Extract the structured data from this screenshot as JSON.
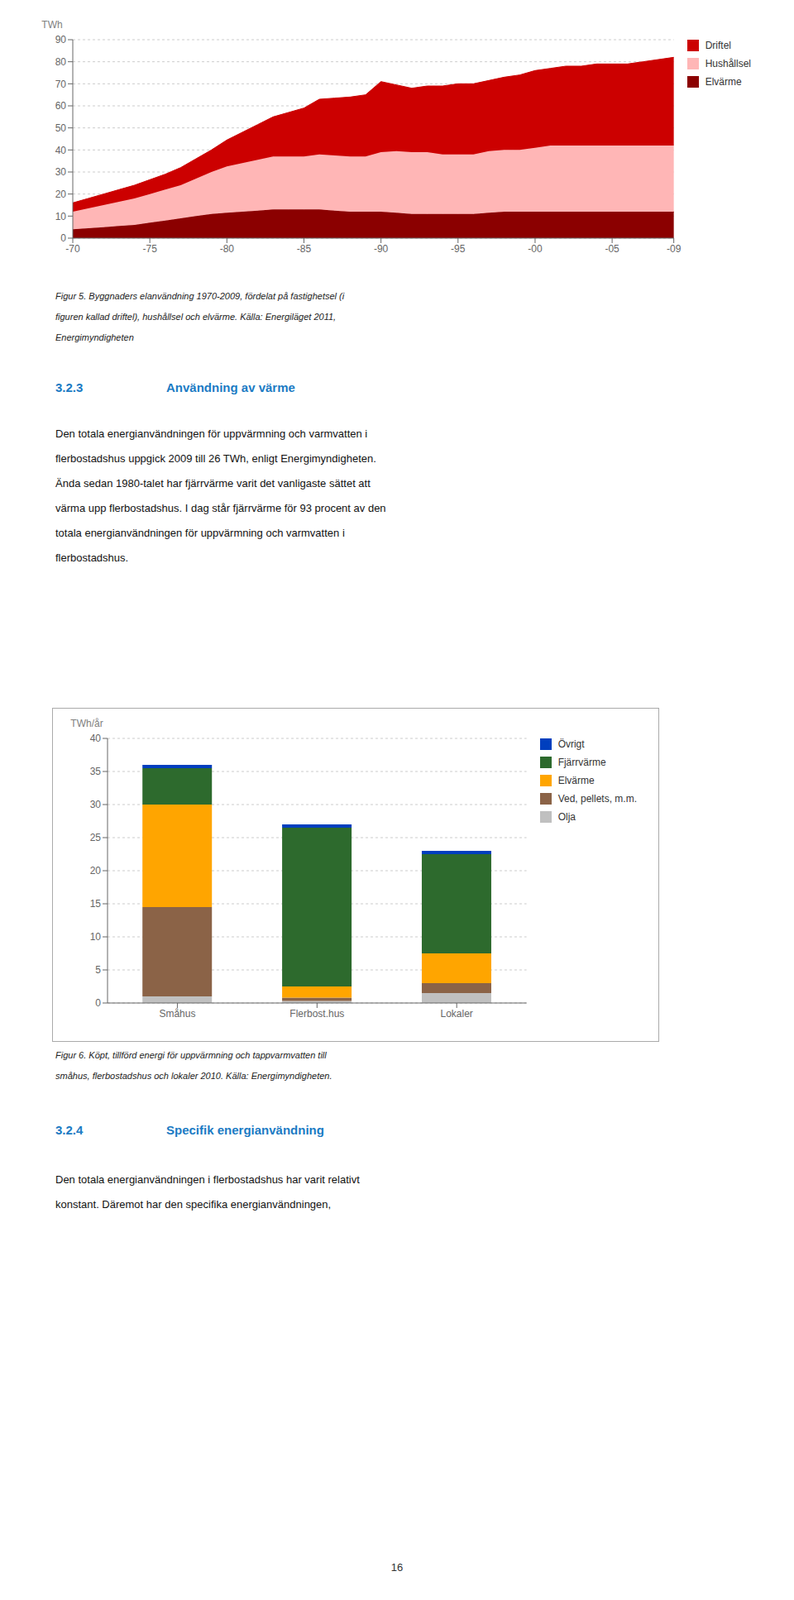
{
  "chart_data": [
    {
      "type": "area",
      "stacked": true,
      "grid": true,
      "legend": "right",
      "categories": [
        "-70",
        null,
        null,
        null,
        null,
        "-75",
        null,
        null,
        null,
        null,
        "-80",
        null,
        null,
        null,
        null,
        "-85",
        null,
        null,
        null,
        null,
        "-90",
        null,
        null,
        null,
        null,
        "-95",
        null,
        null,
        null,
        null,
        "-00",
        null,
        null,
        null,
        null,
        "-05",
        null,
        null,
        null,
        "-09"
      ],
      "series": [
        {
          "name": "Elvärme",
          "color": "#8B0000",
          "values": [
            4,
            4.5,
            5,
            5.5,
            6,
            7,
            8,
            9,
            10,
            11,
            11.5,
            12,
            12.5,
            13,
            13,
            13,
            13,
            12.5,
            12,
            12,
            12,
            11.5,
            11,
            11,
            11,
            11,
            11,
            11.5,
            12,
            12,
            12,
            12,
            12,
            12,
            12,
            12,
            12,
            12,
            12,
            12
          ]
        },
        {
          "name": "Hushållsel",
          "color": "#FFB6B6",
          "values": [
            8,
            9,
            10,
            11,
            12,
            13,
            14,
            15,
            17,
            19,
            21,
            22,
            23,
            24,
            24,
            24,
            25,
            25,
            25,
            25,
            27,
            28,
            28,
            28,
            27,
            27,
            27,
            28,
            28,
            28,
            29,
            30,
            30,
            30,
            30,
            30,
            30,
            30,
            30,
            30
          ]
        },
        {
          "name": "Driftel",
          "color": "#CC0000",
          "values": [
            4,
            4.5,
            5,
            5.5,
            6,
            6.5,
            7,
            8,
            9,
            10,
            12,
            14,
            16,
            18,
            20,
            22,
            25,
            26,
            27,
            28,
            32,
            30,
            29,
            30,
            31,
            32,
            32,
            32,
            33,
            34,
            35,
            35,
            36,
            36,
            37,
            37,
            37,
            38,
            39,
            40
          ]
        }
      ],
      "ylabel": "TWh",
      "ylim": [
        0,
        90
      ],
      "yticks": [
        0,
        10,
        20,
        30,
        40,
        50,
        60,
        70,
        80,
        90
      ],
      "annotations": [
        [
          "Figur 5. Byggnaders elanvändning 1970-2009, fördelat på fastighetsel (i",
          "figuren kallad driftel), hushållsel och elvärme. Källa: Energiläget 2011,",
          "Energimyndigheten"
        ],
        [
          "3.2.3",
          "Användning av värme"
        ],
        [
          "Den totala energianvändningen för uppvärmning och varmvatten i",
          "flerbostadshus uppgick 2009 till 26 TWh, enligt Energimyndigheten.",
          "Ända sedan 1980-talet har fjärrvärme varit det vanligaste sättet att",
          "värma upp flerbostadshus. I dag står fjärrvärme för 93 procent av den",
          "totala energianvändningen för uppvärmning och varmvatten i",
          "flerbostadshus."
        ]
      ]
    },
    {
      "type": "bar",
      "stacked": true,
      "grid": true,
      "legend": "right",
      "categories": [
        "Småhus",
        "Flerbost.hus",
        "Lokaler"
      ],
      "series": [
        {
          "name": "Olja",
          "color": "#C0C0C0",
          "values": [
            1.0,
            0.3,
            1.5
          ]
        },
        {
          "name": "Ved, pellets, m.m.",
          "color": "#8B6347",
          "values": [
            13.5,
            0.5,
            1.5
          ]
        },
        {
          "name": "Elvärme",
          "color": "#FFA500",
          "values": [
            15.5,
            1.7,
            4.5
          ]
        },
        {
          "name": "Fjärrvärme",
          "color": "#2D6A2D",
          "values": [
            5.5,
            24.0,
            15.0
          ]
        },
        {
          "name": "Övrigt",
          "color": "#003FBE",
          "values": [
            0.5,
            0.5,
            0.5
          ]
        }
      ],
      "ylabel": "TWh/år",
      "ylim": [
        0,
        40
      ],
      "yticks": [
        0,
        5,
        10,
        15,
        20,
        25,
        30,
        35,
        40
      ],
      "annotations": [
        [
          "Figur 6. Köpt, tillförd energi för uppvärmning och tappvarmvatten till",
          "småhus, flerbostadshus och lokaler 2010. Källa: Energimyndigheten."
        ],
        [
          "3.2.4",
          "Specifik energianvändning"
        ],
        [
          "Den totala energianvändningen i flerbostadshus har varit relativt",
          "konstant. Däremot har den specifika energianvändningen,"
        ],
        [
          "16"
        ]
      ]
    }
  ]
}
